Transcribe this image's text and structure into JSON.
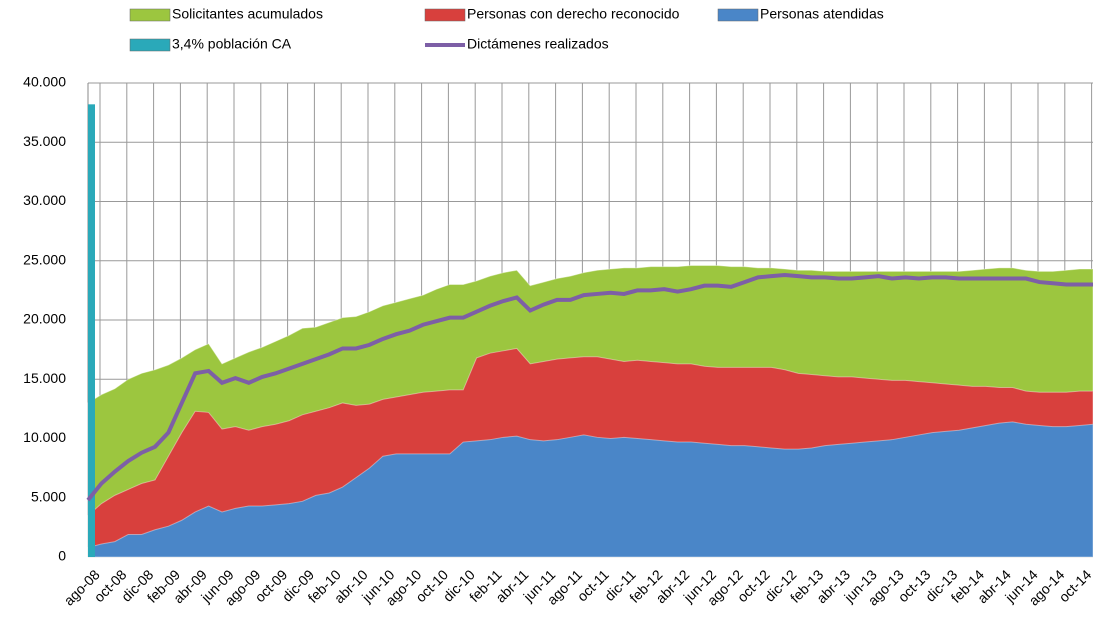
{
  "chart_data": {
    "type": "area",
    "categories": [
      "ago-08",
      null,
      "oct-08",
      null,
      "dic-08",
      null,
      "feb-09",
      null,
      "abr-09",
      null,
      "jun-09",
      null,
      "ago-09",
      null,
      "oct-09",
      null,
      "dic-09",
      null,
      "feb-10",
      null,
      "abr-10",
      null,
      "jun-10",
      null,
      "ago-10",
      null,
      "oct-10",
      null,
      "dic-10",
      null,
      "feb-11",
      null,
      "abr-11",
      null,
      "jun-11",
      null,
      "ago-11",
      null,
      "oct-11",
      null,
      "dic-11",
      null,
      "feb-12",
      null,
      "abr-12",
      null,
      "jun-12",
      null,
      "ago-12",
      null,
      "oct-12",
      null,
      "dic-12",
      null,
      "feb-13",
      null,
      "abr-13",
      null,
      "jun-13",
      null,
      "ago-13",
      null,
      "oct-13",
      null,
      "dic-13",
      null,
      "feb-14",
      null,
      "abr-14",
      null,
      "jun-14",
      null,
      "ago-14",
      null,
      "oct-14",
      null
    ],
    "ylim": [
      0,
      40000
    ],
    "yticks": [
      0,
      {
        "value": 5000,
        "label": "5.000"
      },
      {
        "value": 10000,
        "label": "10.000"
      },
      {
        "value": 15000,
        "label": "15.000"
      },
      {
        "value": 20000,
        "label": "20.000"
      },
      {
        "value": 25000,
        "label": "25.000"
      },
      {
        "value": 30000,
        "label": "30.000"
      },
      {
        "value": 35000,
        "label": "35.000"
      },
      {
        "value": 40000,
        "label": "40.000"
      }
    ],
    "grid": true,
    "series": [
      {
        "name": "Solicitantes acumulados",
        "type": "area",
        "color": "#9cc63f",
        "values": [
          13000,
          13700,
          14200,
          15000,
          15500,
          15800,
          16200,
          16800,
          17500,
          18000,
          16300,
          16800,
          17300,
          17700,
          18200,
          18700,
          19300,
          19400,
          19800,
          20200,
          20300,
          20700,
          21200,
          21500,
          21800,
          22100,
          22600,
          23000,
          23000,
          23300,
          23700,
          24000,
          24200,
          22900,
          23200,
          23500,
          23700,
          24000,
          24200,
          24300,
          24400,
          24400,
          24500,
          24500,
          24500,
          24600,
          24600,
          24600,
          24500,
          24500,
          24400,
          24400,
          24300,
          24200,
          24200,
          24100,
          24100,
          24100,
          24100,
          24100,
          24100,
          24100,
          24100,
          24100,
          24100,
          24100,
          24200,
          24300,
          24400,
          24400,
          24200,
          24100,
          24100,
          24200,
          24300,
          24300
        ]
      },
      {
        "name": "Personas con derecho reconocido",
        "type": "area",
        "color": "#d8403d",
        "values": [
          3500,
          4500,
          5200,
          5700,
          6200,
          6500,
          8500,
          10500,
          12300,
          12200,
          10800,
          11000,
          10700,
          11000,
          11200,
          11500,
          12000,
          12300,
          12600,
          13000,
          12800,
          12900,
          13300,
          13500,
          13700,
          13900,
          14000,
          14100,
          14100,
          16800,
          17200,
          17400,
          17600,
          16300,
          16500,
          16700,
          16800,
          16900,
          16900,
          16700,
          16500,
          16600,
          16500,
          16400,
          16300,
          16300,
          16100,
          16000,
          16000,
          16000,
          16000,
          16000,
          15800,
          15500,
          15400,
          15300,
          15200,
          15200,
          15100,
          15000,
          14900,
          14900,
          14800,
          14700,
          14600,
          14500,
          14400,
          14400,
          14300,
          14300,
          14000,
          13900,
          13900,
          13900,
          14000,
          14000
        ]
      },
      {
        "name": "Personas atendidas",
        "type": "area",
        "color": "#4a86c8",
        "values": [
          800,
          1100,
          1300,
          1900,
          1900,
          2300,
          2600,
          3100,
          3800,
          4300,
          3800,
          4100,
          4300,
          4300,
          4400,
          4500,
          4700,
          5200,
          5400,
          5900,
          6700,
          7500,
          8500,
          8700,
          8700,
          8700,
          8700,
          8700,
          9700,
          9800,
          9900,
          10100,
          10200,
          9900,
          9800,
          9900,
          10100,
          10300,
          10100,
          10000,
          10100,
          10000,
          9900,
          9800,
          9700,
          9700,
          9600,
          9500,
          9400,
          9400,
          9300,
          9200,
          9100,
          9100,
          9200,
          9400,
          9500,
          9600,
          9700,
          9800,
          9900,
          10100,
          10300,
          10500,
          10600,
          10700,
          10900,
          11100,
          11300,
          11400,
          11200,
          11100,
          11000,
          11000,
          11100,
          11200
        ]
      },
      {
        "name": "3,4% población CA",
        "type": "bar",
        "color": "#2aa9b9",
        "values": [
          38200,
          null,
          null,
          null,
          null,
          null,
          null,
          null,
          null,
          null,
          null,
          null,
          null,
          null,
          null,
          null,
          null,
          null,
          null,
          null,
          null,
          null,
          null,
          null,
          null,
          null,
          null,
          null,
          null,
          null,
          null,
          null,
          null,
          null,
          null,
          null,
          null,
          null,
          null,
          null,
          null,
          null,
          null,
          null,
          null,
          null,
          null,
          null,
          null,
          null,
          null,
          null,
          null,
          null,
          null,
          null,
          null,
          null,
          null,
          null,
          null,
          null,
          null,
          null,
          null,
          null,
          null,
          null,
          null,
          null,
          null,
          null,
          null,
          null,
          null,
          null
        ]
      },
      {
        "name": "Dictámenes realizados",
        "type": "line",
        "color": "#7d5fa6",
        "values": [
          4800,
          6200,
          7200,
          8100,
          8800,
          9300,
          10500,
          13000,
          15500,
          15700,
          14700,
          15100,
          14700,
          15200,
          15500,
          15900,
          16300,
          16700,
          17100,
          17600,
          17600,
          17900,
          18400,
          18800,
          19100,
          19600,
          19900,
          20200,
          20200,
          20700,
          21200,
          21600,
          21900,
          20800,
          21300,
          21700,
          21700,
          22100,
          22200,
          22300,
          22200,
          22500,
          22500,
          22600,
          22400,
          22600,
          22900,
          22900,
          22800,
          23200,
          23600,
          23700,
          23800,
          23700,
          23600,
          23600,
          23500,
          23500,
          23600,
          23700,
          23500,
          23600,
          23500,
          23600,
          23600,
          23500,
          23500,
          23500,
          23500,
          23500,
          23500,
          23200,
          23100,
          23000,
          23000,
          23000
        ]
      }
    ]
  }
}
